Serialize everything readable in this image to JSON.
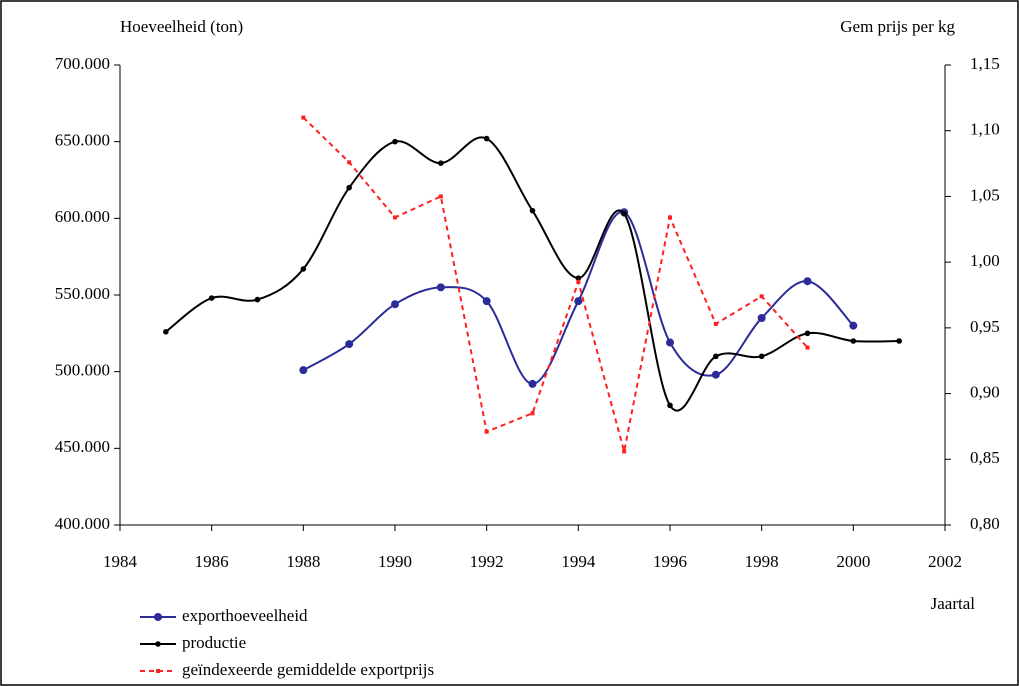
{
  "chart_data": {
    "type": "line",
    "y_title": "Hoeveelheid (ton)",
    "y2_title": "Gem prijs per kg",
    "x_title": "Jaartal",
    "x": [
      1985,
      1986,
      1987,
      1988,
      1989,
      1990,
      1991,
      1992,
      1993,
      1994,
      1995,
      1996,
      1997,
      1998,
      1999,
      2000,
      2001
    ],
    "xlim": [
      1984,
      2002
    ],
    "xticks": [
      1984,
      1986,
      1988,
      1990,
      1992,
      1994,
      1996,
      1998,
      2000,
      2002
    ],
    "ylim": [
      400000,
      700000
    ],
    "yticks": [
      {
        "value": 400000,
        "label": "400.000"
      },
      {
        "value": 450000,
        "label": "450.000"
      },
      {
        "value": 500000,
        "label": "500.000"
      },
      {
        "value": 550000,
        "label": "550.000"
      },
      {
        "value": 600000,
        "label": "600.000"
      },
      {
        "value": 650000,
        "label": "650.000"
      },
      {
        "value": 700000,
        "label": "700.000"
      }
    ],
    "y2lim": [
      0.8,
      1.15
    ],
    "y2ticks": [
      {
        "value": 0.8,
        "label": "0,80"
      },
      {
        "value": 0.85,
        "label": "0,85"
      },
      {
        "value": 0.9,
        "label": "0,90"
      },
      {
        "value": 0.95,
        "label": "0,95"
      },
      {
        "value": 1.0,
        "label": "1,00"
      },
      {
        "value": 1.05,
        "label": "1,05"
      },
      {
        "value": 1.1,
        "label": "1,10"
      },
      {
        "value": 1.15,
        "label": "1,15"
      }
    ],
    "series": [
      {
        "name": "exporthoeveelheid",
        "color": "#2b2b9a",
        "smooth": true,
        "marker": "circle",
        "values": [
          null,
          null,
          null,
          501000,
          518000,
          544000,
          555000,
          546000,
          492000,
          546000,
          604000,
          519000,
          498000,
          535000,
          559000,
          530000,
          null
        ]
      },
      {
        "name": "productie",
        "color": "#000000",
        "smooth": true,
        "marker": "dot",
        "values": [
          526000,
          548000,
          547000,
          567000,
          620000,
          650000,
          636000,
          652000,
          605000,
          561000,
          603000,
          478000,
          510000,
          510000,
          525000,
          520000,
          520000
        ]
      },
      {
        "name": "geïndexeerde gemiddelde exportprijs",
        "color": "#ff2020",
        "smooth": false,
        "dashed": true,
        "marker": "square",
        "axis": "y2",
        "values": [
          null,
          null,
          null,
          1.11,
          1.076,
          1.034,
          1.05,
          0.871,
          0.885,
          0.985,
          0.856,
          1.034,
          0.953,
          0.974,
          0.935,
          null,
          null
        ]
      }
    ]
  }
}
